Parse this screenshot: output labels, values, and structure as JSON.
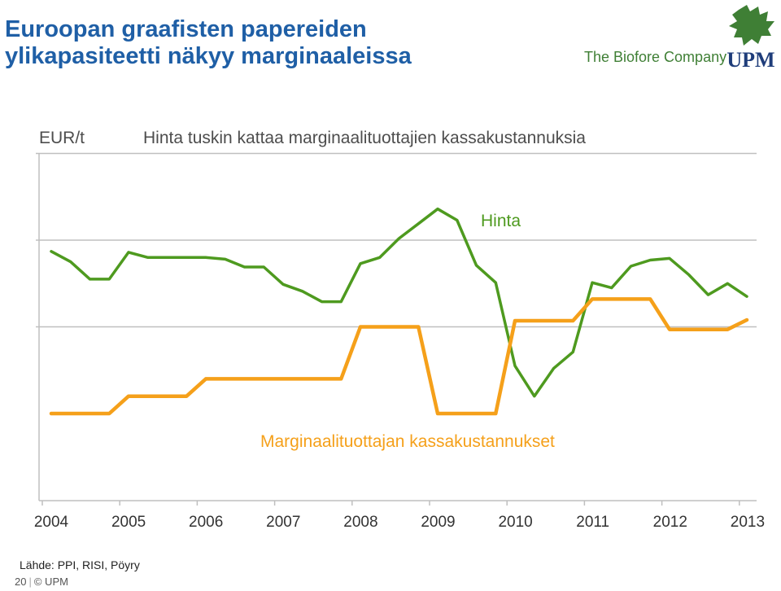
{
  "header": {
    "title_line1": "Euroopan graafisten papereiden",
    "title_line2": "ylikapasiteetti näkyy marginaaleissa",
    "tagline": "The Biofore Company",
    "logo_text": "UPM"
  },
  "colors": {
    "title": "#1f5fa6",
    "hinta": "#4e9a1f",
    "cost": "#f5a01a",
    "brand_green": "#3f7f35"
  },
  "footer": {
    "source": "Lähde: PPI, RISI, Pöyry",
    "page": "20",
    "copyright": "© UPM"
  },
  "chart_data": {
    "type": "line",
    "title": "Hinta tuskin kattaa marginaalituottajien kassakustannuksia",
    "ylabel": "EUR/t",
    "y_tick_labels_shown": false,
    "grid": "horizontal",
    "ylim": [
      0,
      4
    ],
    "x_tick_labels": [
      "2004",
      "2005",
      "2006",
      "2007",
      "2008",
      "2009",
      "2010",
      "2011",
      "2012",
      "2013"
    ],
    "xlim": [
      2004,
      2013
    ],
    "series": [
      {
        "name": "Hinta",
        "color": "#4e9a1f",
        "x": [
          2004.0,
          2004.25,
          2004.5,
          2004.75,
          2005.0,
          2005.25,
          2005.5,
          2005.75,
          2006.0,
          2006.25,
          2006.5,
          2006.75,
          2007.0,
          2007.25,
          2007.5,
          2007.75,
          2008.0,
          2008.25,
          2008.5,
          2008.75,
          2009.0,
          2009.25,
          2009.5,
          2009.75,
          2010.0,
          2010.25,
          2010.5,
          2010.75,
          2011.0,
          2011.25,
          2011.5,
          2011.75,
          2012.0,
          2012.25,
          2012.5,
          2012.75,
          2013.0
        ],
        "values": [
          1.87,
          1.75,
          1.55,
          1.55,
          1.86,
          1.8,
          1.8,
          1.8,
          1.8,
          1.78,
          1.69,
          1.69,
          1.49,
          1.41,
          1.29,
          1.29,
          1.73,
          1.8,
          2.02,
          2.19,
          2.36,
          2.23,
          1.71,
          1.51,
          0.55,
          0.2,
          0.52,
          0.71,
          1.51,
          1.45,
          1.7,
          1.77,
          1.79,
          1.6,
          1.37,
          1.5,
          1.35
        ]
      },
      {
        "name": "Marginaalituottajan kassakustannukset",
        "color": "#f5a01a",
        "x": [
          2004.0,
          2004.75,
          2005.0,
          2005.75,
          2006.0,
          2007.75,
          2008.0,
          2008.75,
          2009.0,
          2009.75,
          2010.0,
          2010.75,
          2011.0,
          2011.75,
          2012.0,
          2012.75,
          2013.0
        ],
        "values": [
          0,
          0,
          0.2,
          0.2,
          0.4,
          0.4,
          1.0,
          1.0,
          0,
          0,
          1.07,
          1.07,
          1.32,
          1.32,
          0.97,
          0.97,
          1.08
        ]
      }
    ]
  }
}
